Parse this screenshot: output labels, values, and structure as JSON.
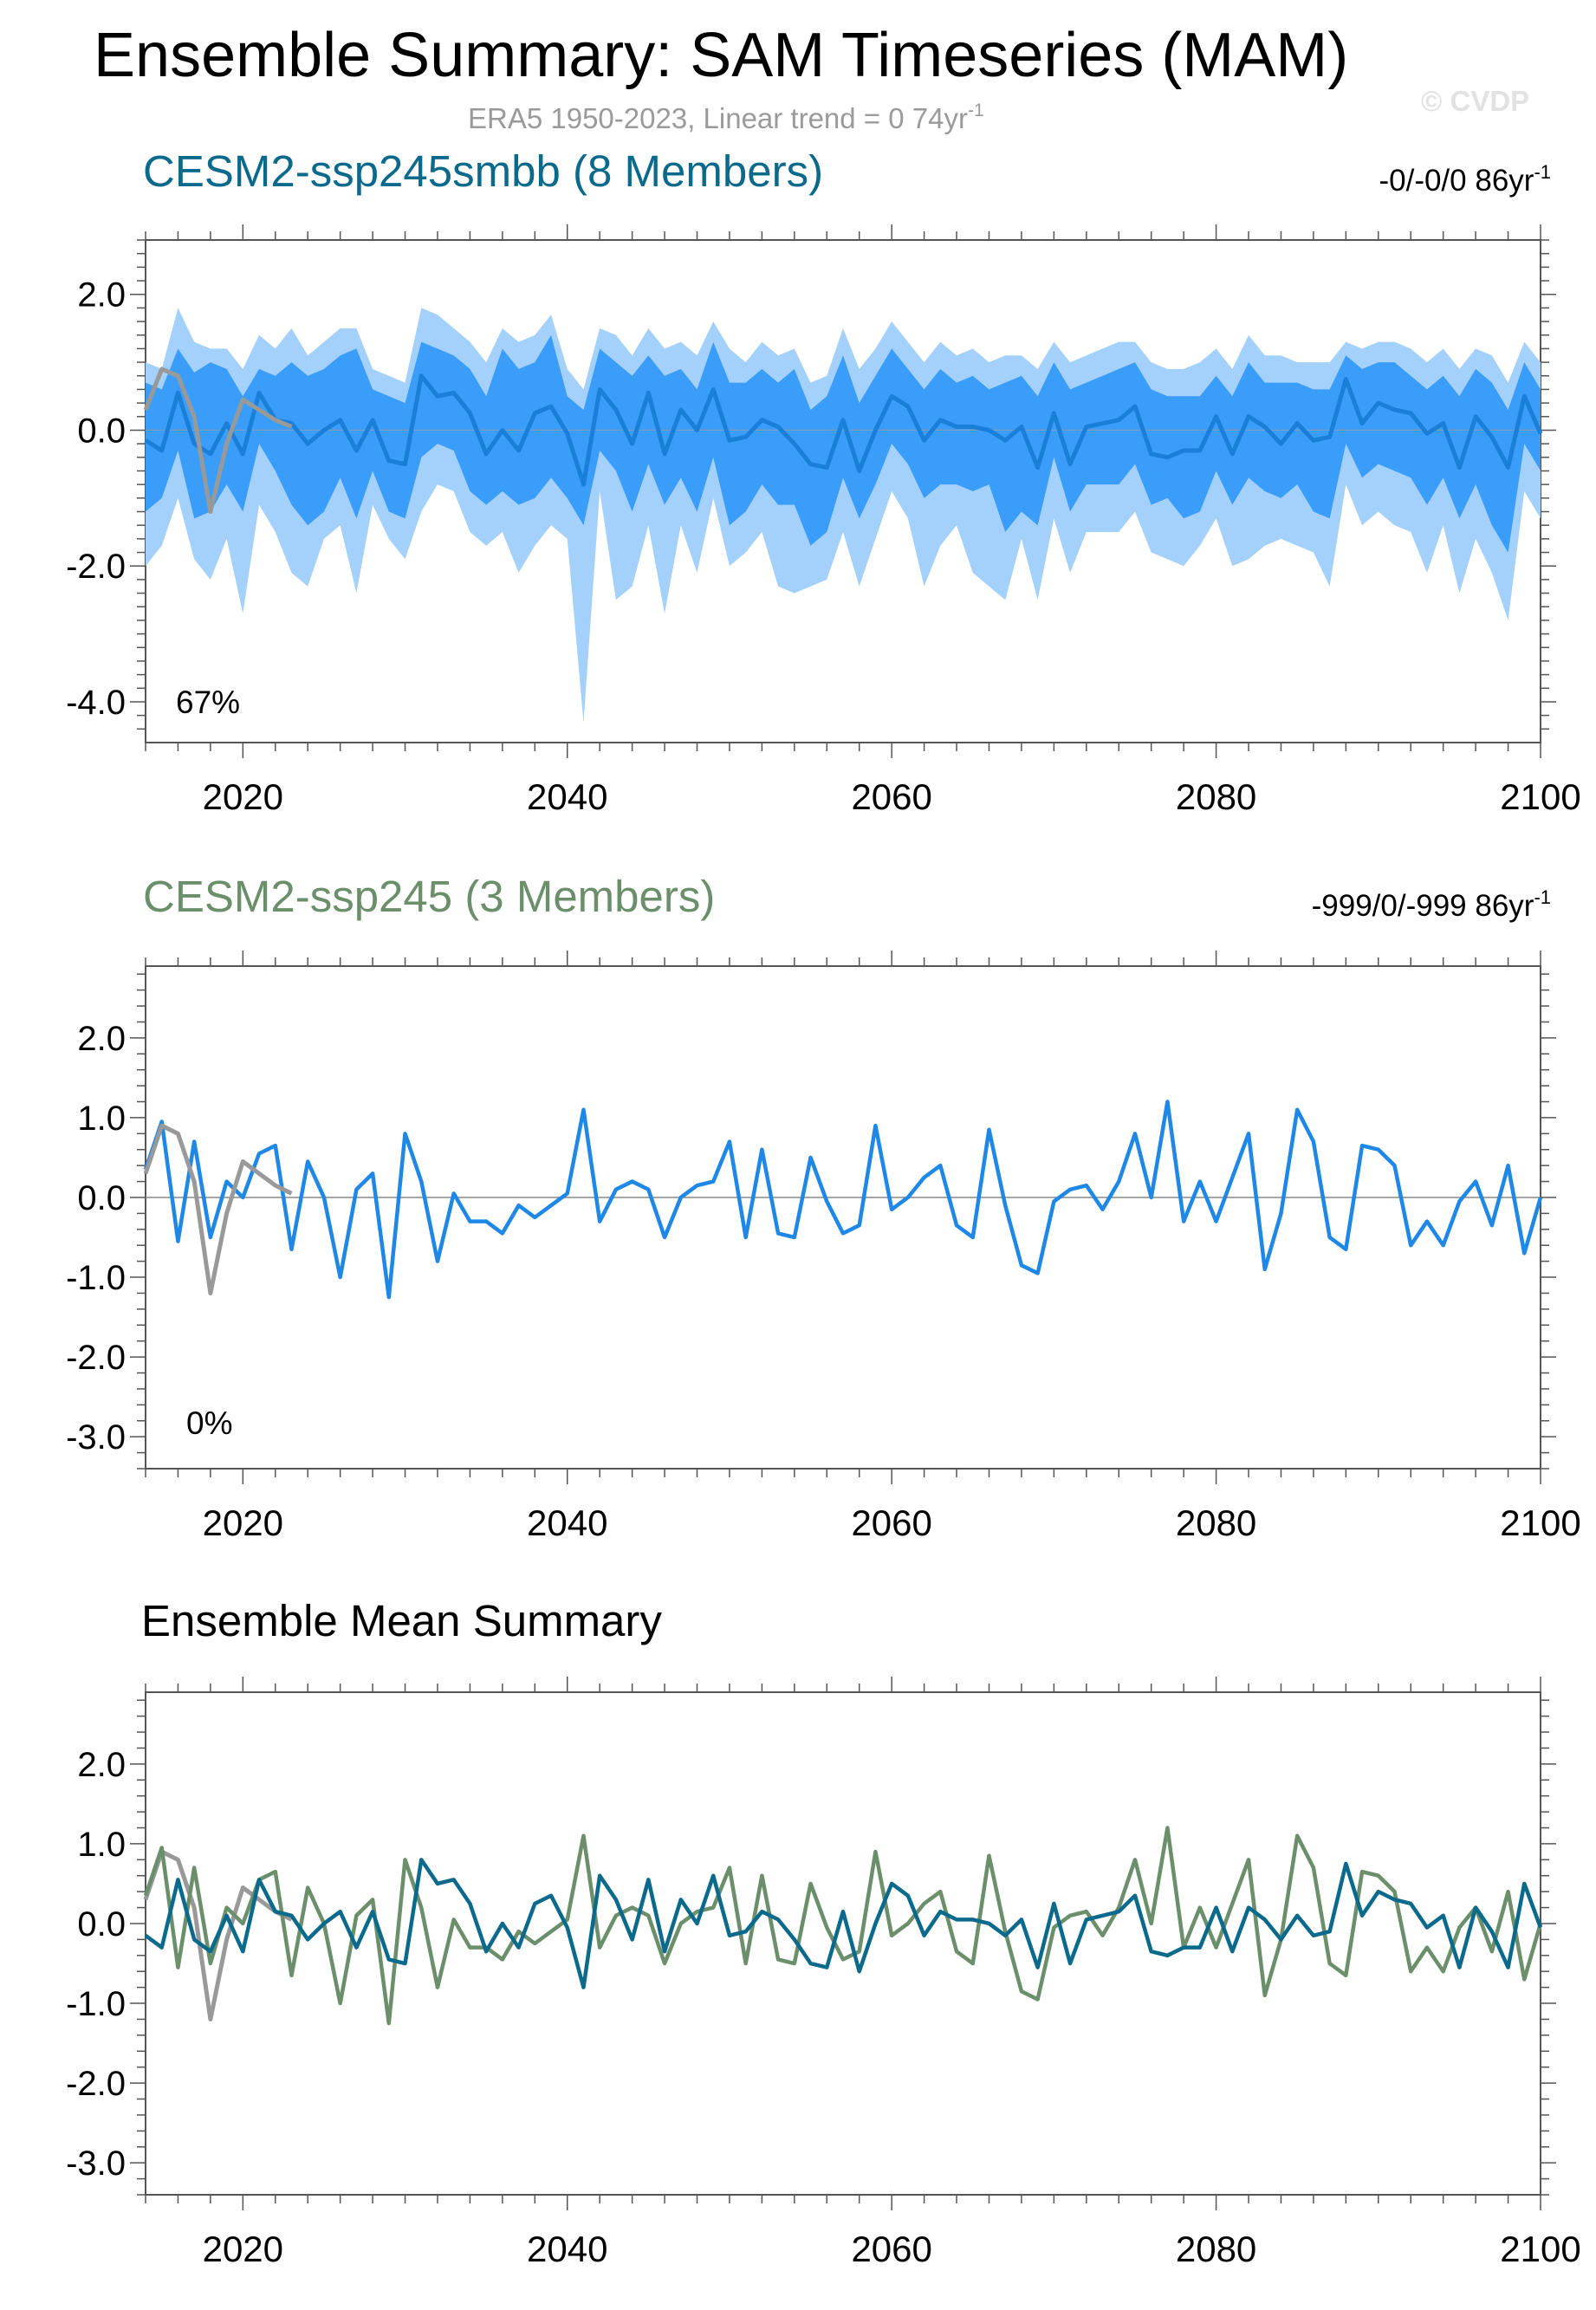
{
  "figure": {
    "title": "Ensemble Summary: SAM Timeseries (MAM)",
    "subtitle": "ERA5 1950-2023, Linear trend = 0 74yr",
    "subtitle_sup": "-1",
    "watermark": "© CVDP"
  },
  "colors": {
    "obs": "#999999",
    "member_line": "#1f88e6",
    "band_outer": "#a3d1fb",
    "band_inner": "#3b9dfa",
    "ens_mean_smbb": "#0b6a8c",
    "ssp245": "#6b8e6b",
    "axis": "#555555"
  },
  "chart_data": [
    {
      "type": "area",
      "title": "CESM2-ssp245smbb (8 Members)",
      "trend_label": "-0/-0/0 86yr",
      "trend_sup": "-1",
      "annotation": "67%",
      "xlim": [
        2014,
        2100
      ],
      "ylim": [
        -4.6,
        2.8
      ],
      "yticks": [
        2.0,
        0.0,
        -2.0,
        -4.0
      ],
      "ytick_labels": [
        "2.0",
        "0.0",
        "-2.0",
        "-4.0"
      ],
      "xticks": [
        2020,
        2040,
        2060,
        2080,
        2100
      ],
      "xtick_labels": [
        "2020",
        "2040",
        "2060",
        "2080",
        "2100"
      ],
      "x_start": 2014,
      "ens_mean": [
        -0.15,
        -0.3,
        0.55,
        -0.2,
        -0.35,
        0.1,
        -0.35,
        0.55,
        0.15,
        0.1,
        -0.2,
        0.0,
        0.15,
        -0.3,
        0.15,
        -0.45,
        -0.5,
        0.8,
        0.5,
        0.55,
        0.25,
        -0.35,
        0.0,
        -0.3,
        0.25,
        0.35,
        -0.05,
        -0.8,
        0.6,
        0.3,
        -0.2,
        0.55,
        -0.35,
        0.3,
        0.0,
        0.6,
        -0.15,
        -0.1,
        0.15,
        0.05,
        -0.2,
        -0.5,
        -0.55,
        0.15,
        -0.6,
        0.0,
        0.5,
        0.35,
        -0.15,
        0.15,
        0.05,
        0.05,
        0.0,
        -0.15,
        0.05,
        -0.55,
        0.25,
        -0.5,
        0.05,
        0.1,
        0.15,
        0.35,
        -0.35,
        -0.4,
        -0.3,
        -0.3,
        0.2,
        -0.35,
        0.2,
        0.05,
        -0.2,
        0.1,
        -0.15,
        -0.1,
        0.75,
        0.1,
        0.4,
        0.3,
        0.25,
        -0.05,
        0.1,
        -0.55,
        0.2,
        -0.1,
        -0.55,
        0.5,
        -0.05
      ],
      "band_inner_upper": [
        0.7,
        0.6,
        1.2,
        0.85,
        1.0,
        0.9,
        0.5,
        0.9,
        0.8,
        1.0,
        0.8,
        0.9,
        1.1,
        1.2,
        0.6,
        0.5,
        0.4,
        1.3,
        1.2,
        1.1,
        0.9,
        0.5,
        1.2,
        0.9,
        1.0,
        1.4,
        0.5,
        0.3,
        1.2,
        1.0,
        0.8,
        1.1,
        0.8,
        0.9,
        0.6,
        1.3,
        0.7,
        0.7,
        0.9,
        0.7,
        0.9,
        0.3,
        0.5,
        1.1,
        0.4,
        0.8,
        1.2,
        0.9,
        0.6,
        0.9,
        0.7,
        0.8,
        0.6,
        0.7,
        0.8,
        0.5,
        1.0,
        0.6,
        0.7,
        0.8,
        0.9,
        1.0,
        0.6,
        0.5,
        0.5,
        0.5,
        0.8,
        0.5,
        1.0,
        0.7,
        0.7,
        0.7,
        0.6,
        0.6,
        1.1,
        0.9,
        1.0,
        1.0,
        0.8,
        0.6,
        0.8,
        0.5,
        0.9,
        0.7,
        0.3,
        1.0,
        0.6
      ],
      "band_inner_lower": [
        -1.2,
        -1.0,
        -0.3,
        -1.3,
        -1.2,
        -0.8,
        -1.2,
        -0.2,
        -0.6,
        -1.1,
        -1.4,
        -1.2,
        -0.7,
        -1.3,
        -0.6,
        -1.2,
        -1.3,
        -0.4,
        -0.2,
        -0.3,
        -0.9,
        -1.1,
        -0.9,
        -1.1,
        -1.0,
        -0.7,
        -1.0,
        -1.4,
        -0.3,
        -0.6,
        -1.2,
        -0.5,
        -1.1,
        -0.7,
        -1.2,
        -0.4,
        -1.4,
        -1.2,
        -0.8,
        -1.1,
        -1.1,
        -1.7,
        -1.5,
        -0.7,
        -1.3,
        -0.8,
        -0.2,
        -0.5,
        -1.0,
        -0.8,
        -0.8,
        -0.9,
        -0.8,
        -1.5,
        -1.2,
        -1.4,
        -0.4,
        -1.2,
        -0.8,
        -0.8,
        -0.8,
        -0.5,
        -1.1,
        -1.0,
        -1.3,
        -1.2,
        -0.6,
        -1.1,
        -0.7,
        -0.9,
        -1.0,
        -0.8,
        -1.2,
        -1.3,
        -0.2,
        -0.7,
        -0.5,
        -0.6,
        -0.7,
        -1.1,
        -0.7,
        -1.3,
        -0.8,
        -1.4,
        -1.8,
        -0.2,
        -0.6
      ],
      "band_outer_upper": [
        1.0,
        0.9,
        1.8,
        1.3,
        1.2,
        1.2,
        0.9,
        1.4,
        1.2,
        1.5,
        1.1,
        1.3,
        1.5,
        1.5,
        0.9,
        0.8,
        0.7,
        1.8,
        1.7,
        1.5,
        1.3,
        1.0,
        1.5,
        1.3,
        1.4,
        1.7,
        0.9,
        0.6,
        1.5,
        1.4,
        1.1,
        1.5,
        1.2,
        1.3,
        1.1,
        1.6,
        1.2,
        1.0,
        1.3,
        1.1,
        1.2,
        0.7,
        0.8,
        1.5,
        0.9,
        1.2,
        1.6,
        1.3,
        1.0,
        1.3,
        1.1,
        1.2,
        1.0,
        1.1,
        1.1,
        0.9,
        1.3,
        1.0,
        1.1,
        1.2,
        1.3,
        1.3,
        1.0,
        0.9,
        0.9,
        1.0,
        1.2,
        0.9,
        1.4,
        1.1,
        1.1,
        1.0,
        1.0,
        1.0,
        1.3,
        1.2,
        1.3,
        1.3,
        1.2,
        1.0,
        1.2,
        0.9,
        1.2,
        1.1,
        0.7,
        1.3,
        1.0
      ],
      "band_outer_lower": [
        -2.0,
        -1.7,
        -1.0,
        -1.9,
        -2.2,
        -1.6,
        -2.7,
        -1.1,
        -1.5,
        -2.1,
        -2.3,
        -1.6,
        -1.4,
        -2.4,
        -1.1,
        -1.6,
        -1.9,
        -1.2,
        -0.8,
        -0.9,
        -1.5,
        -1.7,
        -1.5,
        -2.1,
        -1.7,
        -1.4,
        -1.6,
        -4.3,
        -0.9,
        -2.5,
        -2.3,
        -1.4,
        -2.7,
        -1.4,
        -2.1,
        -1.0,
        -2.0,
        -1.8,
        -1.5,
        -2.3,
        -2.4,
        -2.3,
        -2.2,
        -1.5,
        -2.3,
        -1.6,
        -0.9,
        -1.3,
        -2.3,
        -1.7,
        -1.4,
        -2.1,
        -2.3,
        -2.5,
        -1.6,
        -2.5,
        -1.3,
        -2.1,
        -1.5,
        -1.5,
        -1.5,
        -1.2,
        -1.8,
        -1.9,
        -2.0,
        -1.7,
        -1.3,
        -2.0,
        -1.9,
        -1.7,
        -1.6,
        -1.7,
        -1.8,
        -2.3,
        -0.8,
        -1.4,
        -1.2,
        -1.4,
        -1.5,
        -2.1,
        -1.4,
        -2.4,
        -1.6,
        -2.1,
        -2.8,
        -0.9,
        -1.3
      ],
      "obs": [
        0.3,
        0.9,
        0.8,
        0.2,
        -1.2,
        -0.2,
        0.45,
        0.3,
        0.15,
        0.05
      ]
    },
    {
      "type": "line",
      "title": "CESM2-ssp245 (3 Members)",
      "trend_label": "-999/0/-999 86yr",
      "trend_sup": "-1",
      "annotation": "0%",
      "xlim": [
        2014,
        2100
      ],
      "ylim": [
        -3.4,
        2.9
      ],
      "yticks": [
        2.0,
        1.0,
        0.0,
        -1.0,
        -2.0,
        -3.0
      ],
      "ytick_labels": [
        "2.0",
        "1.0",
        "0.0",
        "-1.0",
        "-2.0",
        "-3.0"
      ],
      "xticks": [
        2020,
        2040,
        2060,
        2080,
        2100
      ],
      "xtick_labels": [
        "2020",
        "2040",
        "2060",
        "2080",
        "2100"
      ],
      "x_start": 2014,
      "member_mean": [
        0.35,
        0.95,
        -0.55,
        0.7,
        -0.5,
        0.2,
        0.0,
        0.55,
        0.65,
        -0.65,
        0.45,
        0.0,
        -1.0,
        0.1,
        0.3,
        -1.25,
        0.8,
        0.2,
        -0.8,
        0.05,
        -0.3,
        -0.3,
        -0.45,
        -0.1,
        -0.25,
        -0.1,
        0.05,
        1.1,
        -0.3,
        0.1,
        0.2,
        0.1,
        -0.5,
        0.0,
        0.15,
        0.2,
        0.7,
        -0.5,
        0.6,
        -0.45,
        -0.5,
        0.5,
        -0.05,
        -0.45,
        -0.35,
        0.9,
        -0.15,
        0.0,
        0.25,
        0.4,
        -0.35,
        -0.5,
        0.85,
        -0.1,
        -0.85,
        -0.95,
        -0.05,
        0.1,
        0.15,
        -0.15,
        0.2,
        0.8,
        0.0,
        1.2,
        -0.3,
        0.2,
        -0.3,
        0.25,
        0.8,
        -0.9,
        -0.2,
        1.1,
        0.7,
        -0.5,
        -0.65,
        0.65,
        0.6,
        0.4,
        -0.6,
        -0.3,
        -0.6,
        -0.05,
        0.2,
        -0.35,
        0.4,
        -0.7,
        0.0
      ],
      "obs": [
        0.3,
        0.9,
        0.8,
        0.2,
        -1.2,
        -0.2,
        0.45,
        0.3,
        0.15,
        0.05
      ]
    },
    {
      "type": "line",
      "title": "Ensemble Mean Summary",
      "xlim": [
        2014,
        2100
      ],
      "ylim": [
        -3.4,
        2.9
      ],
      "yticks": [
        2.0,
        1.0,
        0.0,
        -1.0,
        -2.0,
        -3.0
      ],
      "ytick_labels": [
        "2.0",
        "1.0",
        "0.0",
        "-1.0",
        "-2.0",
        "-3.0"
      ],
      "xticks": [
        2020,
        2040,
        2060,
        2080,
        2100
      ],
      "xtick_labels": [
        "2020",
        "2040",
        "2060",
        "2080",
        "2100"
      ],
      "x_start": 2014,
      "series": [
        {
          "name": "CESM2-ssp245smbb",
          "values": [
            -0.15,
            -0.3,
            0.55,
            -0.2,
            -0.35,
            0.1,
            -0.35,
            0.55,
            0.15,
            0.1,
            -0.2,
            0.0,
            0.15,
            -0.3,
            0.15,
            -0.45,
            -0.5,
            0.8,
            0.5,
            0.55,
            0.25,
            -0.35,
            0.0,
            -0.3,
            0.25,
            0.35,
            -0.05,
            -0.8,
            0.6,
            0.3,
            -0.2,
            0.55,
            -0.35,
            0.3,
            0.0,
            0.6,
            -0.15,
            -0.1,
            0.15,
            0.05,
            -0.2,
            -0.5,
            -0.55,
            0.15,
            -0.6,
            0.0,
            0.5,
            0.35,
            -0.15,
            0.15,
            0.05,
            0.05,
            0.0,
            -0.15,
            0.05,
            -0.55,
            0.25,
            -0.5,
            0.05,
            0.1,
            0.15,
            0.35,
            -0.35,
            -0.4,
            -0.3,
            -0.3,
            0.2,
            -0.35,
            0.2,
            0.05,
            -0.2,
            0.1,
            -0.15,
            -0.1,
            0.75,
            0.1,
            0.4,
            0.3,
            0.25,
            -0.05,
            0.1,
            -0.55,
            0.2,
            -0.1,
            -0.55,
            0.5,
            -0.05
          ]
        },
        {
          "name": "CESM2-ssp245",
          "values": [
            0.35,
            0.95,
            -0.55,
            0.7,
            -0.5,
            0.2,
            0.0,
            0.55,
            0.65,
            -0.65,
            0.45,
            0.0,
            -1.0,
            0.1,
            0.3,
            -1.25,
            0.8,
            0.2,
            -0.8,
            0.05,
            -0.3,
            -0.3,
            -0.45,
            -0.1,
            -0.25,
            -0.1,
            0.05,
            1.1,
            -0.3,
            0.1,
            0.2,
            0.1,
            -0.5,
            0.0,
            0.15,
            0.2,
            0.7,
            -0.5,
            0.6,
            -0.45,
            -0.5,
            0.5,
            -0.05,
            -0.45,
            -0.35,
            0.9,
            -0.15,
            0.0,
            0.25,
            0.4,
            -0.35,
            -0.5,
            0.85,
            -0.1,
            -0.85,
            -0.95,
            -0.05,
            0.1,
            0.15,
            -0.15,
            0.2,
            0.8,
            0.0,
            1.2,
            -0.3,
            0.2,
            -0.3,
            0.25,
            0.8,
            -0.9,
            -0.2,
            1.1,
            0.7,
            -0.5,
            -0.65,
            0.65,
            0.6,
            0.4,
            -0.6,
            -0.3,
            -0.6,
            -0.05,
            0.2,
            -0.35,
            0.4,
            -0.7,
            0.0
          ]
        },
        {
          "name": "ERA5",
          "values": [
            0.3,
            0.9,
            0.8,
            0.2,
            -1.2,
            -0.2,
            0.45,
            0.3,
            0.15,
            0.05
          ]
        }
      ]
    }
  ]
}
